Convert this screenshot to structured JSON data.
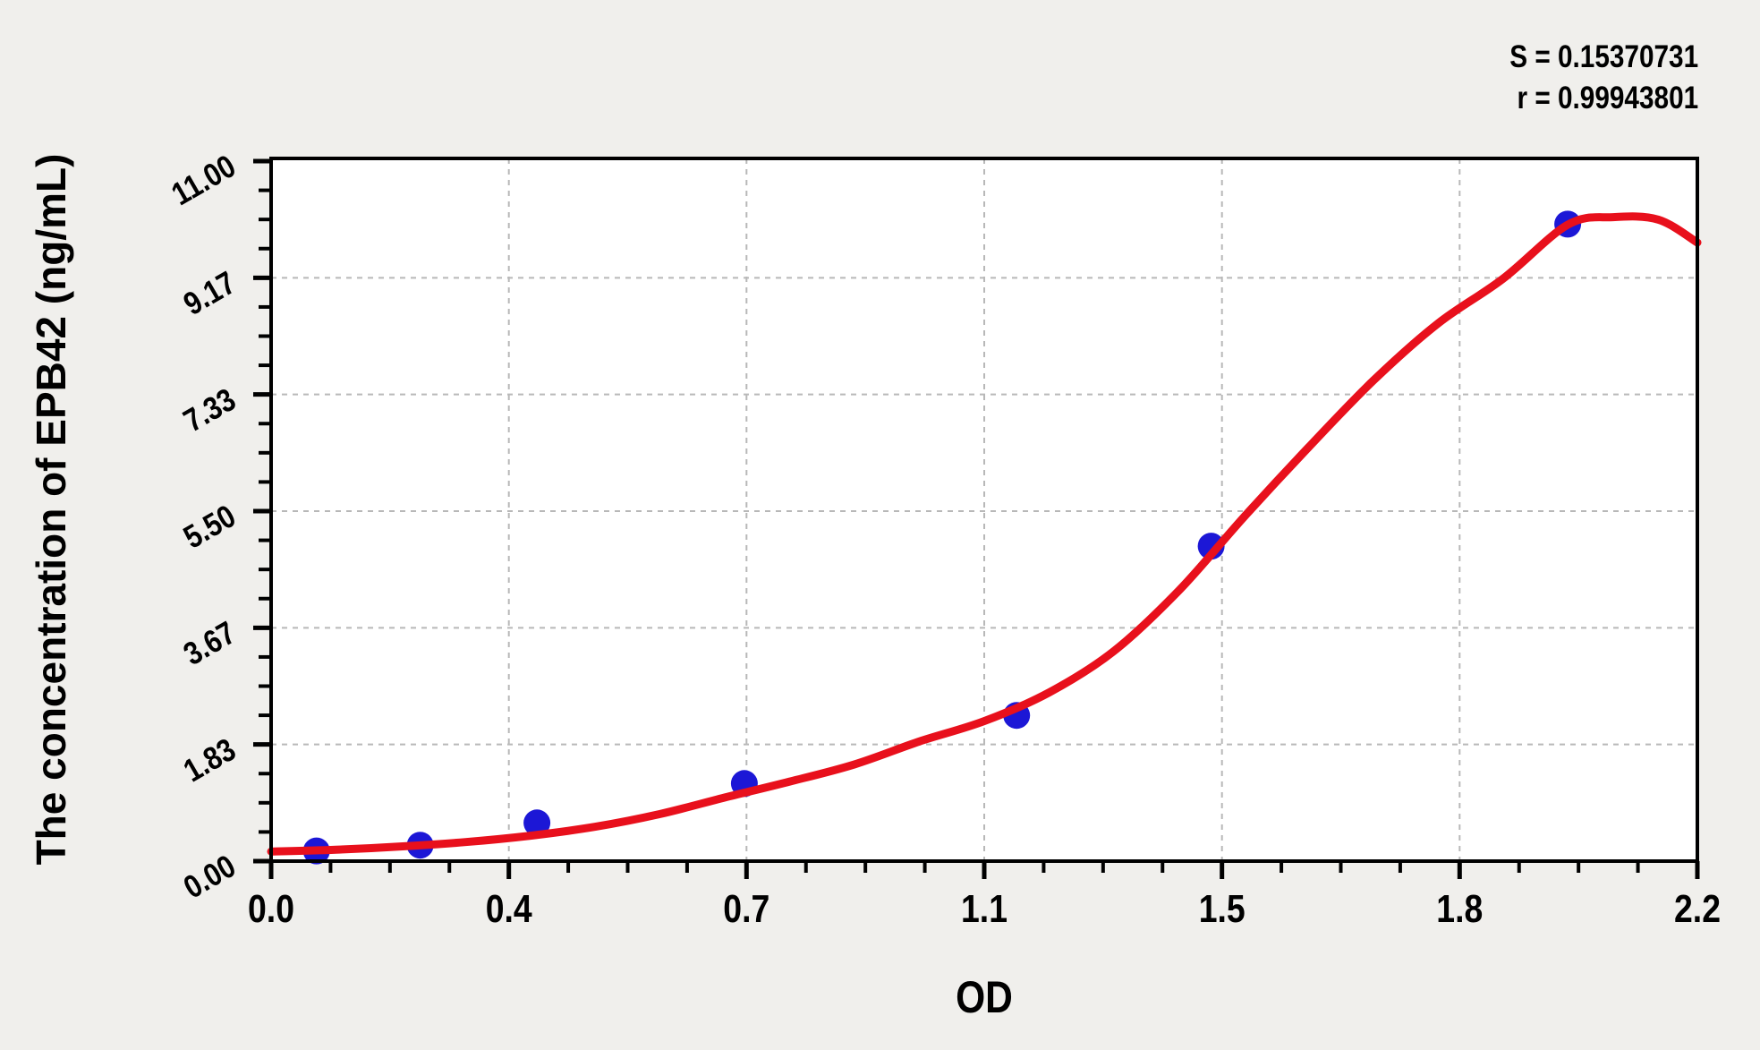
{
  "chart_data": {
    "type": "scatter",
    "title": "",
    "xlabel": "OD",
    "ylabel": "The concentration of EPB42 (ng/mL)",
    "xlim": [
      0,
      2.2
    ],
    "ylim": [
      0,
      11.0
    ],
    "legend": "none",
    "x_ticks": {
      "values": [
        0,
        0.3667,
        0.7333,
        1.1,
        1.4667,
        1.8333,
        2.2
      ],
      "labels": [
        "0.0",
        "0.4",
        "0.7",
        "1.1",
        "1.5",
        "1.8",
        "2.2"
      ],
      "minor_divisions": 4
    },
    "y_ticks": {
      "values": [
        0,
        1.8333,
        3.6667,
        5.5,
        7.3333,
        9.1667,
        11
      ],
      "labels": [
        "0.00",
        "1.83",
        "3.67",
        "5.50",
        "7.33",
        "9.17",
        "11.00"
      ],
      "minor_divisions": 4
    },
    "grid": {
      "show": true,
      "style": "dashed",
      "color": "#b8b8b8"
    },
    "series": [
      {
        "name": "standard-points",
        "type": "scatter",
        "color": "#1c17d6",
        "marker_radius": 15,
        "points": [
          [
            0.07,
            0.16
          ],
          [
            0.23,
            0.25
          ],
          [
            0.41,
            0.6
          ],
          [
            0.73,
            1.22
          ],
          [
            1.15,
            2.29
          ],
          [
            1.45,
            4.95
          ],
          [
            2.0,
            10.01
          ]
        ]
      },
      {
        "name": "fitted-curve",
        "type": "line",
        "color": "#e8101c",
        "stroke_width": 9,
        "points": [
          [
            0,
            0.15
          ],
          [
            0.1,
            0.18
          ],
          [
            0.2,
            0.23
          ],
          [
            0.3,
            0.3
          ],
          [
            0.4,
            0.4
          ],
          [
            0.5,
            0.54
          ],
          [
            0.6,
            0.74
          ],
          [
            0.7,
            1.0
          ],
          [
            0.8,
            1.25
          ],
          [
            0.9,
            1.52
          ],
          [
            1.0,
            1.88
          ],
          [
            1.1,
            2.2
          ],
          [
            1.2,
            2.65
          ],
          [
            1.3,
            3.3
          ],
          [
            1.4,
            4.25
          ],
          [
            1.5,
            5.4
          ],
          [
            1.6,
            6.5
          ],
          [
            1.7,
            7.55
          ],
          [
            1.8,
            8.45
          ],
          [
            1.9,
            9.15
          ],
          [
            2.0,
            10.0
          ],
          [
            2.07,
            10.12
          ],
          [
            2.14,
            10.08
          ],
          [
            2.2,
            9.72
          ]
        ]
      }
    ],
    "stats": {
      "S": "0.15370731",
      "r": "0.99943801"
    },
    "annotations": {
      "s_line": "S = 0.15370731",
      "r_line": "r = 0.99943801"
    }
  },
  "colors": {
    "page_bg": "#f0efec",
    "plot_bg": "#ffffff",
    "axis": "#000000",
    "text": "#000000"
  }
}
